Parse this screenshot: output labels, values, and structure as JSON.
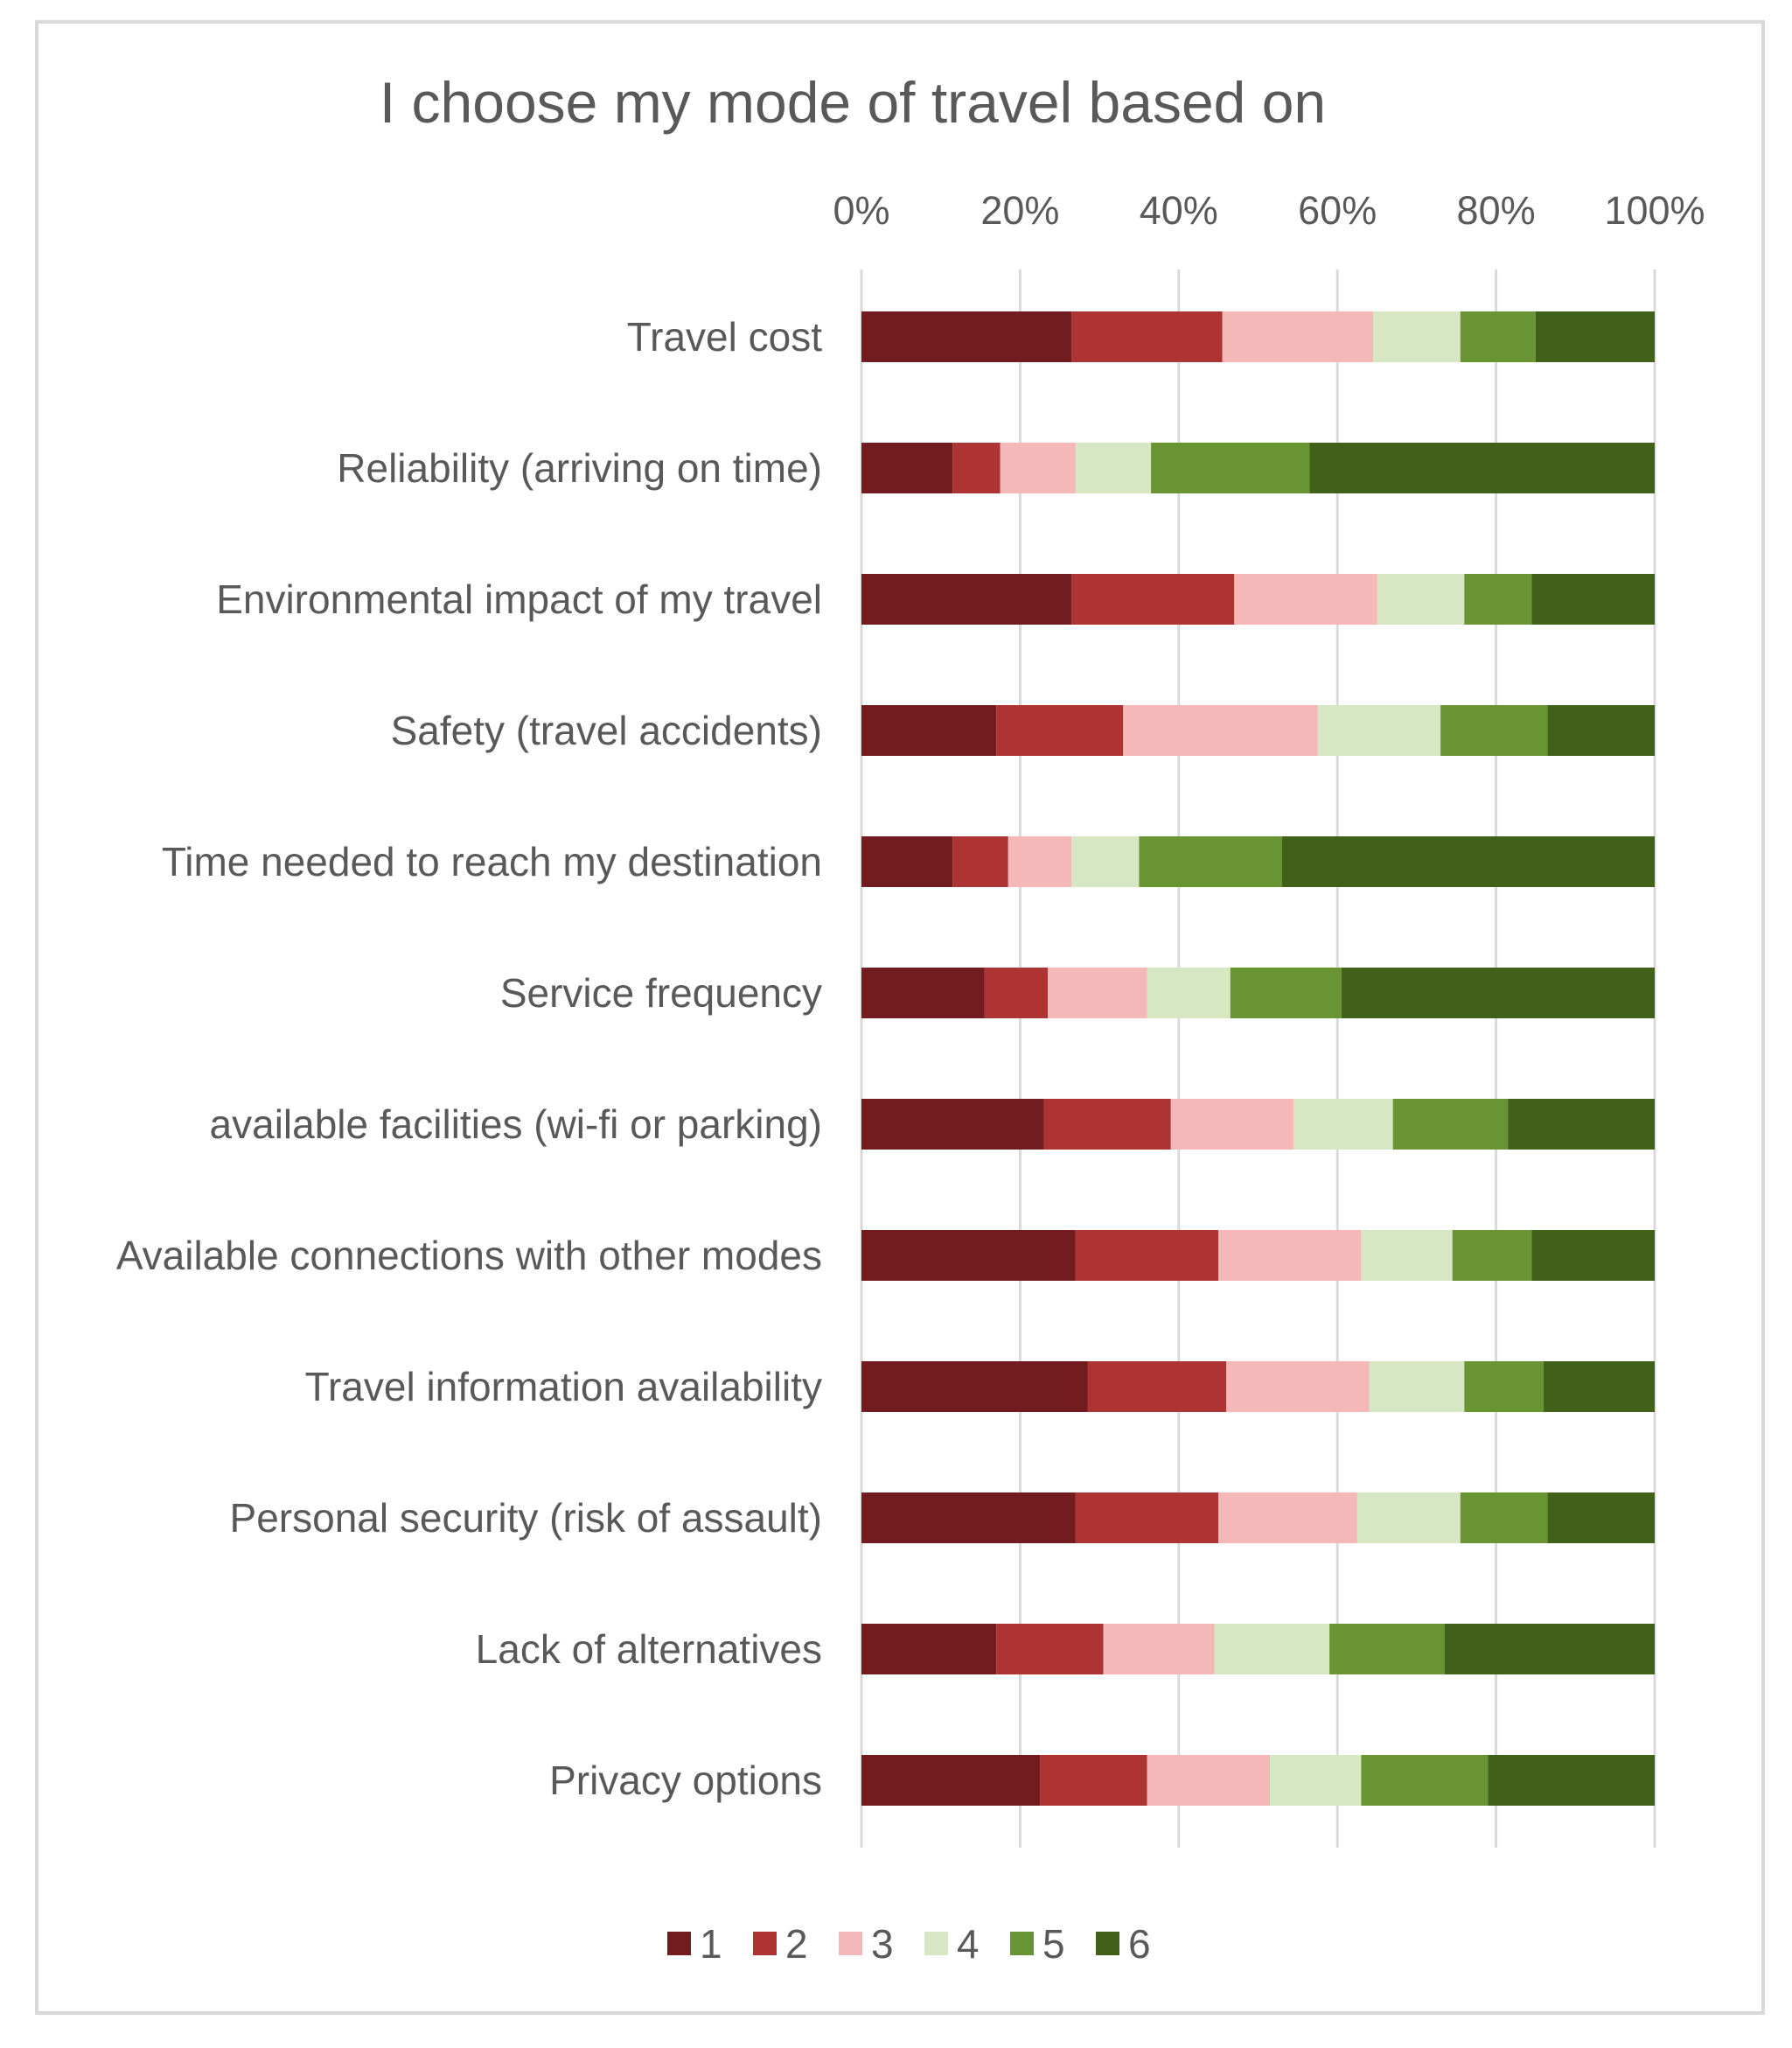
{
  "chart_data": {
    "type": "bar",
    "orientation": "horizontal",
    "stacked": "percent",
    "title": "I choose my mode of travel based on",
    "xlabel": "",
    "ylabel": "",
    "xlim": [
      0,
      100
    ],
    "x_ticks": [
      "0%",
      "20%",
      "40%",
      "60%",
      "80%",
      "100%"
    ],
    "grid": true,
    "legend_position": "bottom",
    "categories": [
      "Travel cost",
      "Reliability (arriving on time)",
      "Environmental impact of my travel",
      "Safety (travel accidents)",
      "Time needed to reach my destination",
      "Service frequency",
      "available facilities (wi-fi or parking)",
      "Available connections with other modes",
      "Travel information availability",
      "Personal security (risk of assault)",
      "Lack of alternatives",
      "Privacy options"
    ],
    "series": [
      {
        "name": "1",
        "color": "#721c1f",
        "values": [
          26.5,
          11.5,
          26.5,
          17.0,
          11.5,
          15.5,
          23.0,
          27.0,
          28.5,
          27.0,
          17.0,
          22.5
        ]
      },
      {
        "name": "2",
        "color": "#ae3434",
        "values": [
          19.0,
          6.0,
          20.5,
          16.0,
          7.0,
          8.0,
          16.0,
          18.0,
          17.5,
          18.0,
          13.5,
          13.5
        ]
      },
      {
        "name": "3",
        "color": "#f4b8b8",
        "values": [
          19.0,
          9.5,
          18.0,
          24.5,
          8.0,
          12.5,
          15.5,
          18.0,
          18.0,
          17.5,
          14.0,
          15.5
        ]
      },
      {
        "name": "4",
        "color": "#d7e7c3",
        "values": [
          11.0,
          9.5,
          11.0,
          15.5,
          8.5,
          10.5,
          12.5,
          11.5,
          12.0,
          13.0,
          14.5,
          11.5
        ]
      },
      {
        "name": "5",
        "color": "#689433",
        "values": [
          9.5,
          20.0,
          8.5,
          13.5,
          18.0,
          14.0,
          14.5,
          10.0,
          10.0,
          11.0,
          14.5,
          16.0
        ]
      },
      {
        "name": "6",
        "color": "#41611b",
        "values": [
          15.0,
          43.5,
          15.5,
          13.5,
          47.0,
          39.5,
          18.5,
          15.5,
          14.0,
          13.5,
          26.5,
          21.0
        ]
      }
    ]
  }
}
